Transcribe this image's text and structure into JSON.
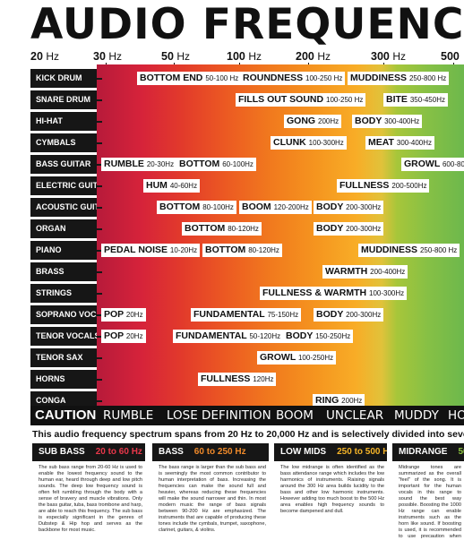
{
  "title": "AUDIO FREQUENCY",
  "frequency_axis": [
    {
      "value": "20",
      "unit": "Hz"
    },
    {
      "value": "30",
      "unit": "Hz"
    },
    {
      "value": "50",
      "unit": "Hz"
    },
    {
      "value": "100",
      "unit": "Hz"
    },
    {
      "value": "200",
      "unit": "Hz"
    },
    {
      "value": "300",
      "unit": "Hz"
    },
    {
      "value": "500",
      "unit": ""
    }
  ],
  "instruments": [
    {
      "name": "KICK DRUM",
      "tags": [
        {
          "label": "BOTTOM END",
          "range": "50-100 Hz"
        },
        {
          "label": "ROUNDNESS",
          "range": "100-250 Hz"
        },
        {
          "label": "MUDDINESS",
          "range": "250-800 Hz"
        }
      ]
    },
    {
      "name": "SNARE DRUM",
      "tags": [
        {
          "label": "FILLS OUT SOUND",
          "range": "100-250 Hz"
        },
        {
          "label": "BITE",
          "range": "350-450Hz"
        }
      ]
    },
    {
      "name": "HI-HAT",
      "tags": [
        {
          "label": "GONG",
          "range": "200Hz"
        },
        {
          "label": "BODY",
          "range": "300-400Hz"
        }
      ]
    },
    {
      "name": "CYMBALS",
      "tags": [
        {
          "label": "CLUNK",
          "range": "100-300Hz"
        },
        {
          "label": "MEAT",
          "range": "300-400Hz"
        }
      ]
    },
    {
      "name": "BASS GUITAR",
      "tags": [
        {
          "label": "RUMBLE",
          "range": "20-30Hz"
        },
        {
          "label": "BOTTOM",
          "range": "60-100Hz"
        },
        {
          "label": "GROWL",
          "range": "600-800"
        }
      ]
    },
    {
      "name": "ELECTRIC GUITAR",
      "tags": [
        {
          "label": "HUM",
          "range": "40-60Hz"
        },
        {
          "label": "FULLNESS",
          "range": "200-500Hz"
        }
      ]
    },
    {
      "name": "ACOUSTIC GUITAR",
      "tags": [
        {
          "label": "BOTTOM",
          "range": "80-100Hz"
        },
        {
          "label": "BOOM",
          "range": "120-200Hz"
        },
        {
          "label": "BODY",
          "range": "200-300Hz"
        }
      ]
    },
    {
      "name": "ORGAN",
      "tags": [
        {
          "label": "BOTTOM",
          "range": "80-120Hz"
        },
        {
          "label": "BODY",
          "range": "200-300Hz"
        }
      ]
    },
    {
      "name": "PIANO",
      "tags": [
        {
          "label": "PEDAL NOISE",
          "range": "10-20Hz"
        },
        {
          "label": "BOTTOM",
          "range": "80-120Hz"
        },
        {
          "label": "MUDDINESS",
          "range": "250-800 Hz"
        }
      ]
    },
    {
      "name": "BRASS",
      "tags": [
        {
          "label": "WARMTH",
          "range": "200-400Hz"
        }
      ]
    },
    {
      "name": "STRINGS",
      "tags": [
        {
          "label": "FULLNESS & WARMTH",
          "range": "100-300Hz"
        }
      ]
    },
    {
      "name": "SOPRANO VOCALS",
      "tags": [
        {
          "label": "POP",
          "range": "20Hz"
        },
        {
          "label": "FUNDAMENTAL",
          "range": "75-150Hz"
        },
        {
          "label": "BODY",
          "range": "200-300Hz"
        }
      ]
    },
    {
      "name": "TENOR VOCALS",
      "tags": [
        {
          "label": "POP",
          "range": "20Hz"
        },
        {
          "label": "FUNDAMENTAL",
          "range": "50-120Hz"
        },
        {
          "label": "BODY",
          "range": "150-250Hz"
        }
      ]
    },
    {
      "name": "TENOR SAX",
      "tags": [
        {
          "label": "GROWL",
          "range": "100-250Hz"
        }
      ]
    },
    {
      "name": "HORNS",
      "tags": [
        {
          "label": "FULLNESS",
          "range": "120Hz"
        }
      ]
    },
    {
      "name": "CONGA",
      "tags": [
        {
          "label": "RING",
          "range": "200Hz"
        }
      ]
    }
  ],
  "caution": {
    "label": "CAUTION",
    "items": [
      "RUMBLE",
      "LOSE DEFINITION",
      "BOOM",
      "UNCLEAR",
      "MUDDY",
      "HO"
    ]
  },
  "summary": "This audio frequency spectrum spans from 20 Hz to 20,000 Hz and is selectively divided into seven dif",
  "panels": [
    {
      "name": "SUB BASS",
      "range": "20 to 60 Hz",
      "range_color": "#e8374a",
      "text": "The sub bass range from 20-60 Hz is used to enable the lowest frequency sound to the human ear, heard through deep and low pitch sounds. The deep low frequency sound is often felt rumbling through the body with a sense of bravery and muscle vibrations. Only the bass guitar, tuba, bass trombone and harp, are able to reach this frequency. The sub bass is especially significant in the genres of Dubstep & Hip hop and serves as the backbone for most music."
    },
    {
      "name": "BASS",
      "range": "60 to 250 Hz",
      "range_color": "#f08a2a",
      "text": "The bass range is larger than the sub bass and is seemingly the most common contributor to human interpretation of bass. Increasing the frequencies can make the sound full and heavier, whereas reducing these frequencies will make the sound narrower and thin. In most modern music the range of bass signals between 90-200 Hz are emphasized. The instruments that are capable of producing these tones include the cymbals, trumpet, saxophone, clarinet, guitars, & violins."
    },
    {
      "name": "LOW MIDS",
      "range": "250 to 500 Hz",
      "range_color": "#f5b428",
      "text": "The low midrange is often identified as the bass attendance range which includes the low harmonics of instruments. Raising signals around the 300 Hz area builds lucidity to the bass and other low harmonic instruments. However adding too much boost to the 500 Hz area enables high frequency sounds to become dampened and dull."
    },
    {
      "name": "MIDRANGE",
      "range": "500",
      "range_color": "#8cc43f",
      "text": "Midrange tones are summarized as the overall \"feel\" of the song. It is important for the human vocals in this range to sound the best way possible. Boosting the 1000 Hz range can enable instruments such as the horn like sound. If boosting is used, it is recommended to use precaution when done on human vocals, because human hearing is most sensitive to human voice."
    }
  ]
}
